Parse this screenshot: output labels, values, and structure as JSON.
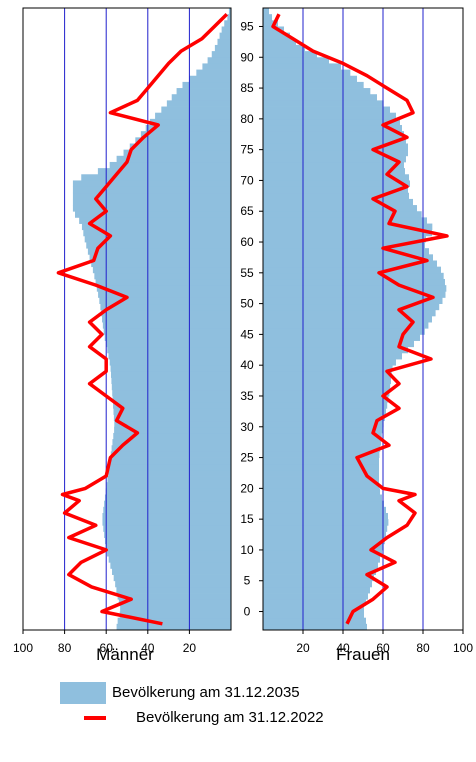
{
  "chart_data": {
    "type": "bar",
    "title": "",
    "ages": [
      0,
      100
    ],
    "ylim": [
      -3,
      98
    ],
    "xlim": [
      0,
      100
    ],
    "x_ticks": [
      100,
      80,
      60,
      40,
      20
    ],
    "x_ticks_right": [
      20,
      40,
      60,
      80,
      100
    ],
    "y_ticks": [
      0,
      5,
      10,
      15,
      20,
      25,
      30,
      35,
      40,
      45,
      50,
      55,
      60,
      65,
      70,
      75,
      80,
      85,
      90,
      95
    ],
    "grid_x": [
      80,
      60,
      40,
      20
    ],
    "panels": [
      {
        "name": "Männer",
        "side": "left"
      },
      {
        "name": "Frauen",
        "side": "right"
      }
    ],
    "series": [
      {
        "name": "Bevölkerung am 31.12.2035",
        "style": "bar",
        "color": "#8fbfde",
        "men": {
          "ages": [
            -2,
            0,
            5,
            10,
            15,
            20,
            25,
            30,
            35,
            40,
            45,
            50,
            55,
            60,
            63,
            65,
            68,
            70,
            72,
            75,
            78,
            80,
            82,
            85,
            88,
            90,
            92,
            95,
            97
          ],
          "values": [
            55,
            53,
            56,
            60,
            62,
            60,
            58,
            56,
            57,
            58,
            61,
            63,
            66,
            70,
            72,
            76,
            76,
            76,
            60,
            50,
            42,
            38,
            32,
            25,
            15,
            10,
            7,
            4,
            1
          ]
        },
        "women": {
          "ages": [
            -2,
            0,
            5,
            10,
            15,
            20,
            25,
            30,
            35,
            40,
            45,
            50,
            52,
            55,
            58,
            60,
            62,
            65,
            68,
            70,
            72,
            75,
            78,
            80,
            82,
            85,
            88,
            90,
            92,
            95,
            97
          ],
          "values": [
            52,
            50,
            55,
            60,
            63,
            58,
            58,
            60,
            63,
            65,
            80,
            89,
            92,
            90,
            84,
            80,
            86,
            78,
            72,
            74,
            70,
            73,
            70,
            68,
            62,
            52,
            42,
            30,
            18,
            9,
            3
          ]
        }
      },
      {
        "name": "Bevölkerung am 31.12.2022",
        "style": "line",
        "color": "#ff0000",
        "men": {
          "ages": [
            -2,
            0,
            2,
            4,
            6,
            8,
            10,
            12,
            14,
            16,
            18,
            19,
            20,
            22,
            25,
            27,
            29,
            31,
            33,
            35,
            37,
            39,
            41,
            43,
            45,
            47,
            49,
            51,
            53,
            55,
            57,
            59,
            61,
            63,
            65,
            67,
            69,
            71,
            73,
            75,
            77,
            79,
            81,
            83,
            85,
            87,
            89,
            91,
            93,
            95,
            97
          ],
          "values": [
            33,
            62,
            48,
            67,
            78,
            72,
            60,
            78,
            65,
            80,
            73,
            81,
            70,
            60,
            58,
            52,
            45,
            55,
            52,
            60,
            68,
            60,
            60,
            68,
            62,
            68,
            60,
            50,
            65,
            83,
            66,
            64,
            58,
            68,
            60,
            65,
            60,
            55,
            50,
            48,
            42,
            35,
            58,
            45,
            40,
            35,
            30,
            24,
            14,
            8,
            2
          ]
        },
        "women": {
          "ages": [
            -2,
            0,
            2,
            4,
            6,
            8,
            10,
            12,
            14,
            16,
            18,
            19,
            20,
            22,
            25,
            27,
            29,
            31,
            33,
            35,
            37,
            39,
            41,
            43,
            45,
            47,
            49,
            51,
            53,
            55,
            57,
            59,
            61,
            63,
            65,
            67,
            69,
            71,
            73,
            75,
            77,
            79,
            81,
            83,
            85,
            87,
            89,
            91,
            93,
            95,
            97
          ],
          "values": [
            42,
            45,
            55,
            62,
            52,
            66,
            54,
            62,
            72,
            76,
            68,
            76,
            60,
            52,
            47,
            63,
            55,
            57,
            68,
            60,
            68,
            62,
            84,
            68,
            70,
            75,
            68,
            85,
            68,
            58,
            82,
            60,
            92,
            63,
            66,
            55,
            72,
            62,
            68,
            55,
            72,
            60,
            75,
            72,
            62,
            52,
            40,
            25,
            15,
            5,
            8
          ]
        }
      }
    ],
    "legend": [
      {
        "label": "Bevölkerung am 31.12.2035",
        "kind": "bar"
      },
      {
        "label": "Bevölkerung am 31.12.2022",
        "kind": "line"
      }
    ]
  }
}
